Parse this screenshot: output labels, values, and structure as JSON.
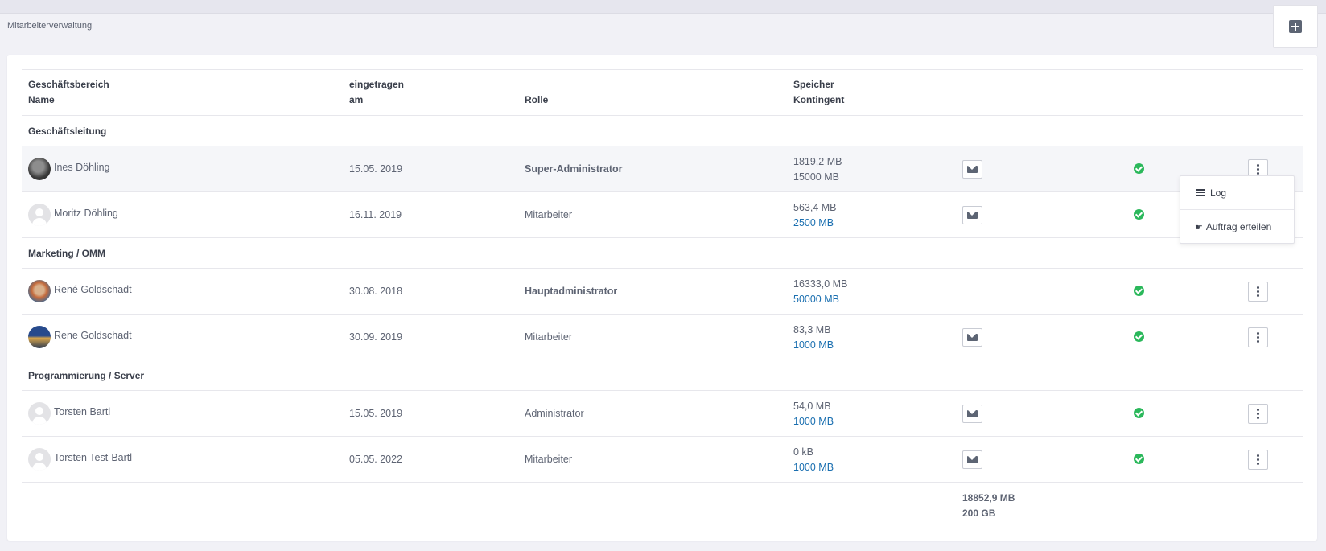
{
  "page": {
    "title": "Mitarbeiterverwaltung"
  },
  "header": {
    "col1_line1": "Geschäftsbereich",
    "col1_line2": "Name",
    "col2_line1": "eingetragen",
    "col2_line2": "am",
    "col3": "Rolle",
    "col4_line1": "Speicher",
    "col4_line2": "Kontingent"
  },
  "groups": [
    {
      "name": "Geschäftsleitung",
      "rows": [
        {
          "name": "Ines Döhling",
          "date": "15.05. 2019",
          "role": "Super-Administrator",
          "used": "1819,2 MB",
          "quota": "15000 MB",
          "status": "active"
        },
        {
          "name": "Moritz Döhling",
          "date": "16.11. 2019",
          "role": "Mitarbeiter",
          "used": "563,4 MB",
          "quota": "2500 MB",
          "status": "active"
        }
      ]
    },
    {
      "name": "Marketing / OMM",
      "rows": [
        {
          "name": "René Goldschadt",
          "date": "30.08. 2018",
          "role": "Hauptadministrator",
          "used": "16333,0 MB",
          "quota": "50000 MB",
          "status": "active"
        },
        {
          "name": "Rene Goldschadt",
          "date": "30.09. 2019",
          "role": "Mitarbeiter",
          "used": "83,3 MB",
          "quota": "1000 MB",
          "status": "active"
        }
      ]
    },
    {
      "name": "Programmierung / Server",
      "rows": [
        {
          "name": "Torsten Bartl",
          "date": "15.05. 2019",
          "role": "Administrator",
          "used": "54,0 MB",
          "quota": "1000 MB",
          "status": "active"
        },
        {
          "name": "Torsten Test-Bartl",
          "date": "05.05. 2022",
          "role": "Mitarbeiter",
          "used": "0 kB",
          "quota": "1000 MB",
          "status": "active"
        }
      ]
    }
  ],
  "totals": {
    "used": "18852,9 MB",
    "quota": "200 GB"
  },
  "dropdown": {
    "log_label": "Log",
    "order_label": "Auftrag erteilen"
  },
  "icons": {
    "add": "plus-square-icon",
    "mail": "envelope-icon",
    "status": "check-circle-icon",
    "menu": "ellipsis-vertical-icon",
    "log": "list-icon",
    "order": "hand-pointing-icon"
  },
  "colors": {
    "accent_link": "#1a6fb0",
    "status_green": "#2bb85b"
  }
}
